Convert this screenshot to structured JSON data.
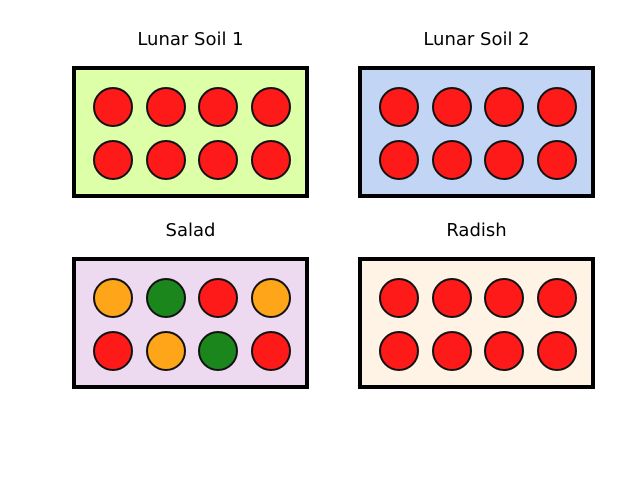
{
  "panels": [
    {
      "title": "Lunar Soil 1",
      "background": "#dcffa8",
      "wells": [
        [
          "#ff1a1a",
          "#ff1a1a",
          "#ff1a1a",
          "#ff1a1a"
        ],
        [
          "#ff1a1a",
          "#ff1a1a",
          "#ff1a1a",
          "#ff1a1a"
        ]
      ]
    },
    {
      "title": "Lunar Soil 2",
      "background": "#c3d5f5",
      "wells": [
        [
          "#ff1a1a",
          "#ff1a1a",
          "#ff1a1a",
          "#ff1a1a"
        ],
        [
          "#ff1a1a",
          "#ff1a1a",
          "#ff1a1a",
          "#ff1a1a"
        ]
      ]
    },
    {
      "title": "Salad",
      "background": "#eedaf0",
      "wells": [
        [
          "#ffa51a",
          "#1b861b",
          "#ff1a1a",
          "#ffa51a"
        ],
        [
          "#ff1a1a",
          "#ffa51a",
          "#1b861b",
          "#ff1a1a"
        ]
      ]
    },
    {
      "title": "Radish",
      "background": "#fff3e5",
      "wells": [
        [
          "#ff1a1a",
          "#ff1a1a",
          "#ff1a1a",
          "#ff1a1a"
        ],
        [
          "#ff1a1a",
          "#ff1a1a",
          "#ff1a1a",
          "#ff1a1a"
        ]
      ]
    }
  ]
}
